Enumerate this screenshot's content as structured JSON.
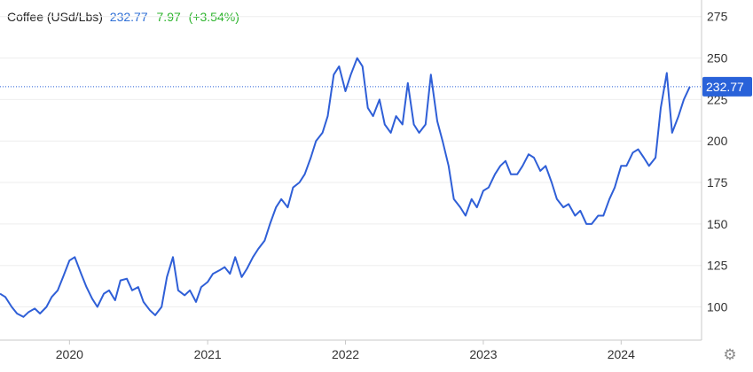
{
  "header": {
    "instrument": "Coffee (USd/Lbs)",
    "price": "232.77",
    "change": "7.97",
    "change_pct": "(+3.54%)"
  },
  "colors": {
    "line": "#2f5fd7",
    "price_text": "#2f6fd6",
    "change_text": "#2bb32b",
    "axis": "#c8c8c8",
    "grid": "#eeeeee",
    "tag_bg": "#2962d9"
  },
  "settings_icon": "gear-icon",
  "chart_data": {
    "type": "line",
    "title": "Coffee (USd/Lbs)",
    "xlabel": "",
    "ylabel": "",
    "x_tick_labels": [
      "2020",
      "2021",
      "2022",
      "2023",
      "2024"
    ],
    "y_tick_labels": [
      "100",
      "125",
      "150",
      "175",
      "200",
      "225",
      "250",
      "275"
    ],
    "xlim": [
      "2019-07",
      "2024-08"
    ],
    "ylim": [
      80,
      285
    ],
    "last_value": 232.77,
    "last_value_label": "232.77",
    "grid": "horizontal",
    "series": [
      {
        "x": [
          "2019-07-01",
          "2019-07-15",
          "2019-08-01",
          "2019-08-15",
          "2019-09-01",
          "2019-09-15",
          "2019-10-01",
          "2019-10-15",
          "2019-11-01",
          "2019-11-15",
          "2019-12-01",
          "2019-12-15",
          "2020-01-01",
          "2020-01-15",
          "2020-02-01",
          "2020-02-15",
          "2020-03-01",
          "2020-03-15",
          "2020-04-01",
          "2020-04-15",
          "2020-05-01",
          "2020-05-15",
          "2020-06-01",
          "2020-06-15",
          "2020-07-01",
          "2020-07-15",
          "2020-08-01",
          "2020-08-15",
          "2020-09-01",
          "2020-09-15",
          "2020-10-01",
          "2020-10-15",
          "2020-11-01",
          "2020-11-15",
          "2020-12-01",
          "2020-12-15",
          "2021-01-01",
          "2021-01-15",
          "2021-02-01",
          "2021-02-15",
          "2021-03-01",
          "2021-03-15",
          "2021-04-01",
          "2021-04-15",
          "2021-05-01",
          "2021-05-15",
          "2021-06-01",
          "2021-06-15",
          "2021-07-01",
          "2021-07-15",
          "2021-08-01",
          "2021-08-15",
          "2021-09-01",
          "2021-09-15",
          "2021-10-01",
          "2021-10-15",
          "2021-11-01",
          "2021-11-15",
          "2021-12-01",
          "2021-12-15",
          "2022-01-01",
          "2022-01-15",
          "2022-02-01",
          "2022-02-15",
          "2022-03-01",
          "2022-03-15",
          "2022-04-01",
          "2022-04-15",
          "2022-05-01",
          "2022-05-15",
          "2022-06-01",
          "2022-06-15",
          "2022-07-01",
          "2022-07-15",
          "2022-08-01",
          "2022-08-15",
          "2022-09-01",
          "2022-09-15",
          "2022-10-01",
          "2022-10-15",
          "2022-11-01",
          "2022-11-15",
          "2022-12-01",
          "2022-12-15",
          "2023-01-01",
          "2023-01-15",
          "2023-02-01",
          "2023-02-15",
          "2023-03-01",
          "2023-03-15",
          "2023-04-01",
          "2023-04-15",
          "2023-05-01",
          "2023-05-15",
          "2023-06-01",
          "2023-06-15",
          "2023-07-01",
          "2023-07-15",
          "2023-08-01",
          "2023-08-15",
          "2023-09-01",
          "2023-09-15",
          "2023-10-01",
          "2023-10-15",
          "2023-11-01",
          "2023-11-15",
          "2023-12-01",
          "2023-12-15",
          "2024-01-01",
          "2024-01-15",
          "2024-02-01",
          "2024-02-15",
          "2024-03-01",
          "2024-03-15",
          "2024-04-01",
          "2024-04-15",
          "2024-05-01",
          "2024-05-15",
          "2024-06-01",
          "2024-06-15",
          "2024-07-01"
        ],
        "y": [
          108,
          106,
          100,
          96,
          94,
          97,
          99,
          96,
          100,
          106,
          110,
          118,
          128,
          130,
          120,
          112,
          105,
          100,
          108,
          110,
          104,
          116,
          117,
          110,
          112,
          103,
          98,
          95,
          100,
          118,
          130,
          110,
          107,
          110,
          103,
          112,
          115,
          120,
          122,
          124,
          120,
          130,
          118,
          123,
          130,
          135,
          140,
          150,
          160,
          165,
          160,
          172,
          175,
          180,
          190,
          200,
          205,
          215,
          240,
          245,
          230,
          240,
          250,
          245,
          220,
          215,
          225,
          210,
          205,
          215,
          210,
          235,
          210,
          205,
          210,
          240,
          212,
          200,
          185,
          165,
          160,
          155,
          165,
          160,
          170,
          172,
          180,
          185,
          188,
          180,
          180,
          185,
          192,
          190,
          182,
          185,
          175,
          165,
          160,
          162,
          155,
          158,
          150,
          150,
          155,
          155,
          165,
          172,
          185,
          185,
          193,
          195,
          190,
          185,
          190,
          220,
          241,
          205,
          215,
          225,
          232.77
        ]
      }
    ]
  }
}
